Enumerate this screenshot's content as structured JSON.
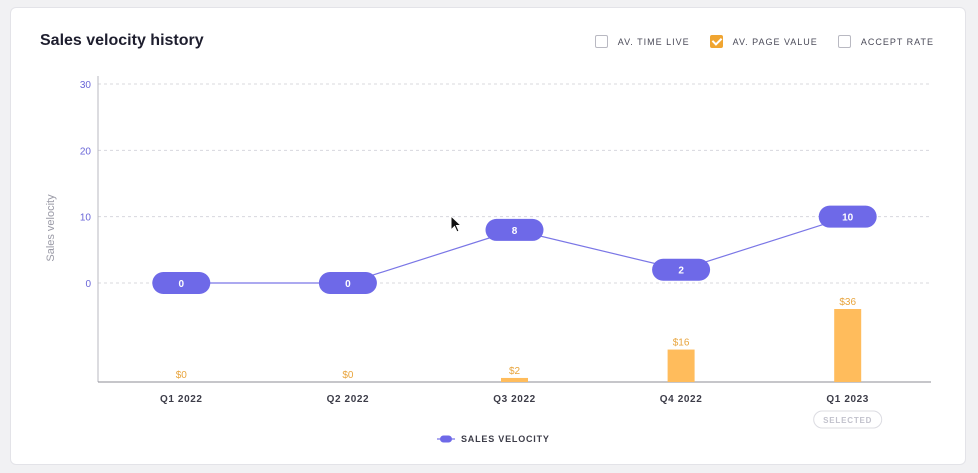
{
  "header": {
    "title": "Sales velocity history",
    "toggles": [
      {
        "label": "AV. TIME LIVE",
        "checked": false
      },
      {
        "label": "AV. PAGE VALUE",
        "checked": true
      },
      {
        "label": "ACCEPT RATE",
        "checked": false
      }
    ]
  },
  "colors": {
    "line": "#7a76e6",
    "pill": "#6e69e8",
    "bar": "#ffbc5c",
    "bar_label": "#e8a43c",
    "axis_tick": "#6a66d8"
  },
  "chart_data": {
    "type": "line",
    "categories": [
      "Q1 2022",
      "Q2 2022",
      "Q3 2022",
      "Q4 2022",
      "Q1 2023"
    ],
    "ylabel": "Sales velocity",
    "ylim": [
      0,
      30
    ],
    "yticks": [
      0,
      10,
      20,
      30
    ],
    "grid": true,
    "series": [
      {
        "name": "SALES VELOCITY",
        "values": [
          0,
          0,
          8,
          2,
          10
        ],
        "labels": [
          "0",
          "0",
          "8",
          "2",
          "10"
        ]
      }
    ],
    "bars": {
      "values": [
        0,
        0,
        2,
        16,
        36
      ],
      "labels": [
        "$0",
        "$0",
        "$2",
        "$16",
        "$36"
      ],
      "ylim": [
        0,
        36
      ]
    },
    "legend": "bottom-center",
    "selected_category": "Q1 2023",
    "selected_label": "SELECTED"
  }
}
